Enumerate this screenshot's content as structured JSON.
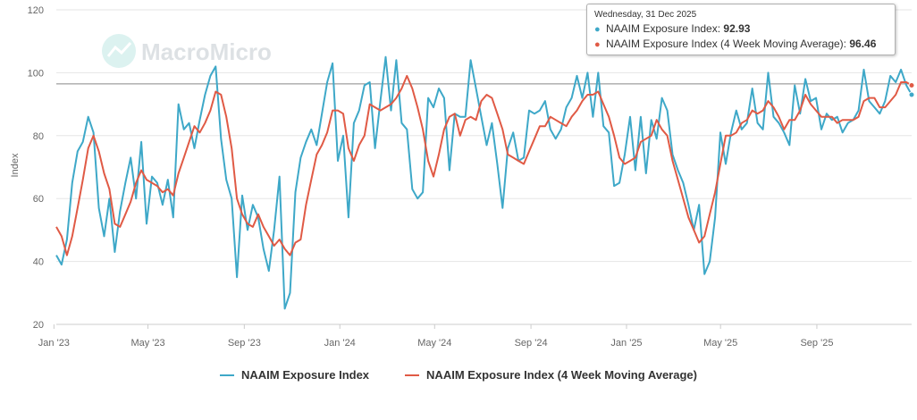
{
  "chart_data": {
    "type": "line",
    "title": "",
    "xlabel": "",
    "ylabel": "Index",
    "ylim": [
      20,
      120
    ],
    "yticks": [
      20,
      40,
      60,
      80,
      100,
      120
    ],
    "x_start": "2023-01-04",
    "x_end": "2025-12-31",
    "xticks": [
      {
        "label": "Jan '23",
        "date": "2023-01-01"
      },
      {
        "label": "May '23",
        "date": "2023-05-01"
      },
      {
        "label": "Sep '23",
        "date": "2023-09-01"
      },
      {
        "label": "Jan '24",
        "date": "2024-01-01"
      },
      {
        "label": "May '24",
        "date": "2024-05-01"
      },
      {
        "label": "Sep '24",
        "date": "2024-09-01"
      },
      {
        "label": "Jan '25",
        "date": "2025-01-01"
      },
      {
        "label": "May '25",
        "date": "2025-05-01"
      },
      {
        "label": "Sep '25",
        "date": "2025-09-01"
      }
    ],
    "series": [
      {
        "name": "NAAIM Exposure Index",
        "color": "#3ea8c8",
        "values": [
          42,
          39,
          47,
          65,
          75,
          78,
          86,
          81,
          57,
          48,
          60,
          43,
          56,
          65,
          73,
          60,
          78,
          52,
          67,
          65,
          58,
          66,
          54,
          90,
          82,
          84,
          76,
          85,
          93,
          99,
          102,
          79,
          66,
          60,
          35,
          61,
          50,
          58,
          54,
          44,
          37,
          50,
          67,
          25,
          30,
          62,
          73,
          78,
          82,
          77,
          87,
          97,
          103,
          72,
          80,
          54,
          84,
          88,
          96,
          97,
          76,
          91,
          105,
          88,
          104,
          84,
          82,
          63,
          60,
          62,
          92,
          89,
          95,
          92,
          69,
          87,
          86,
          86,
          104,
          95,
          86,
          77,
          84,
          71,
          57,
          76,
          81,
          72,
          73,
          88,
          87,
          88,
          91,
          82,
          79,
          82,
          89,
          92,
          99,
          92,
          100,
          86,
          100,
          83,
          81,
          64,
          65,
          74,
          86,
          69,
          86,
          68,
          85,
          79,
          92,
          88,
          74,
          69,
          65,
          58,
          50,
          58,
          36,
          40,
          54,
          81,
          71,
          81,
          88,
          82,
          84,
          95,
          84,
          82,
          100,
          86,
          84,
          81,
          77,
          96,
          87,
          98,
          91,
          92,
          82,
          87,
          85,
          86,
          81,
          84,
          85,
          88,
          101,
          91,
          89,
          87,
          91,
          99,
          97,
          101,
          96,
          93
        ]
      },
      {
        "name": "NAAIM Exposure Index (4 Week Moving Average)",
        "color": "#e05a45",
        "values": [
          51,
          48,
          42,
          48,
          57,
          66,
          76,
          80,
          75,
          68,
          63,
          52,
          51,
          55,
          59,
          65,
          69,
          66,
          65,
          64,
          62,
          63,
          61,
          68,
          73,
          78,
          83,
          81,
          84,
          88,
          94,
          93,
          86,
          76,
          60,
          55,
          52,
          51,
          55,
          51,
          48,
          45,
          47,
          44,
          42,
          46,
          47,
          58,
          66,
          74,
          77,
          81,
          88,
          88,
          87,
          76,
          72,
          77,
          80,
          90,
          89,
          88,
          89,
          90,
          92,
          95,
          99,
          95,
          89,
          82,
          72,
          67,
          74,
          82,
          86,
          87,
          80,
          85,
          86,
          85,
          91,
          93,
          92,
          87,
          82,
          74,
          73,
          72,
          71,
          75,
          79,
          83,
          83,
          86,
          85,
          84,
          83,
          86,
          88,
          91,
          93,
          93,
          94,
          90,
          86,
          80,
          73,
          71,
          72,
          73,
          78,
          79,
          80,
          85,
          82,
          80,
          72,
          66,
          60,
          54,
          50,
          46,
          48,
          55,
          62,
          71,
          80,
          80,
          81,
          84,
          85,
          88,
          87,
          88,
          91,
          89,
          86,
          82,
          85,
          85,
          88,
          93,
          90,
          88,
          86,
          86,
          86,
          84,
          85,
          85,
          85,
          86,
          91,
          92,
          92,
          89,
          89,
          91,
          93,
          97,
          97,
          96
        ]
      }
    ],
    "tooltip": {
      "date": "Wednesday, 31 Dec 2025",
      "rows": [
        {
          "label": "NAAIM Exposure Index:",
          "value": "92.93"
        },
        {
          "label": "NAAIM Exposure Index (4 Week Moving Average):",
          "value": "96.46"
        }
      ]
    },
    "reference_value": 96.46
  },
  "watermark": "MacroMicro",
  "legend": [
    {
      "label": "NAAIM Exposure Index",
      "color": "#3ea8c8"
    },
    {
      "label": "NAAIM Exposure Index (4 Week Moving Average)",
      "color": "#e05a45"
    }
  ]
}
